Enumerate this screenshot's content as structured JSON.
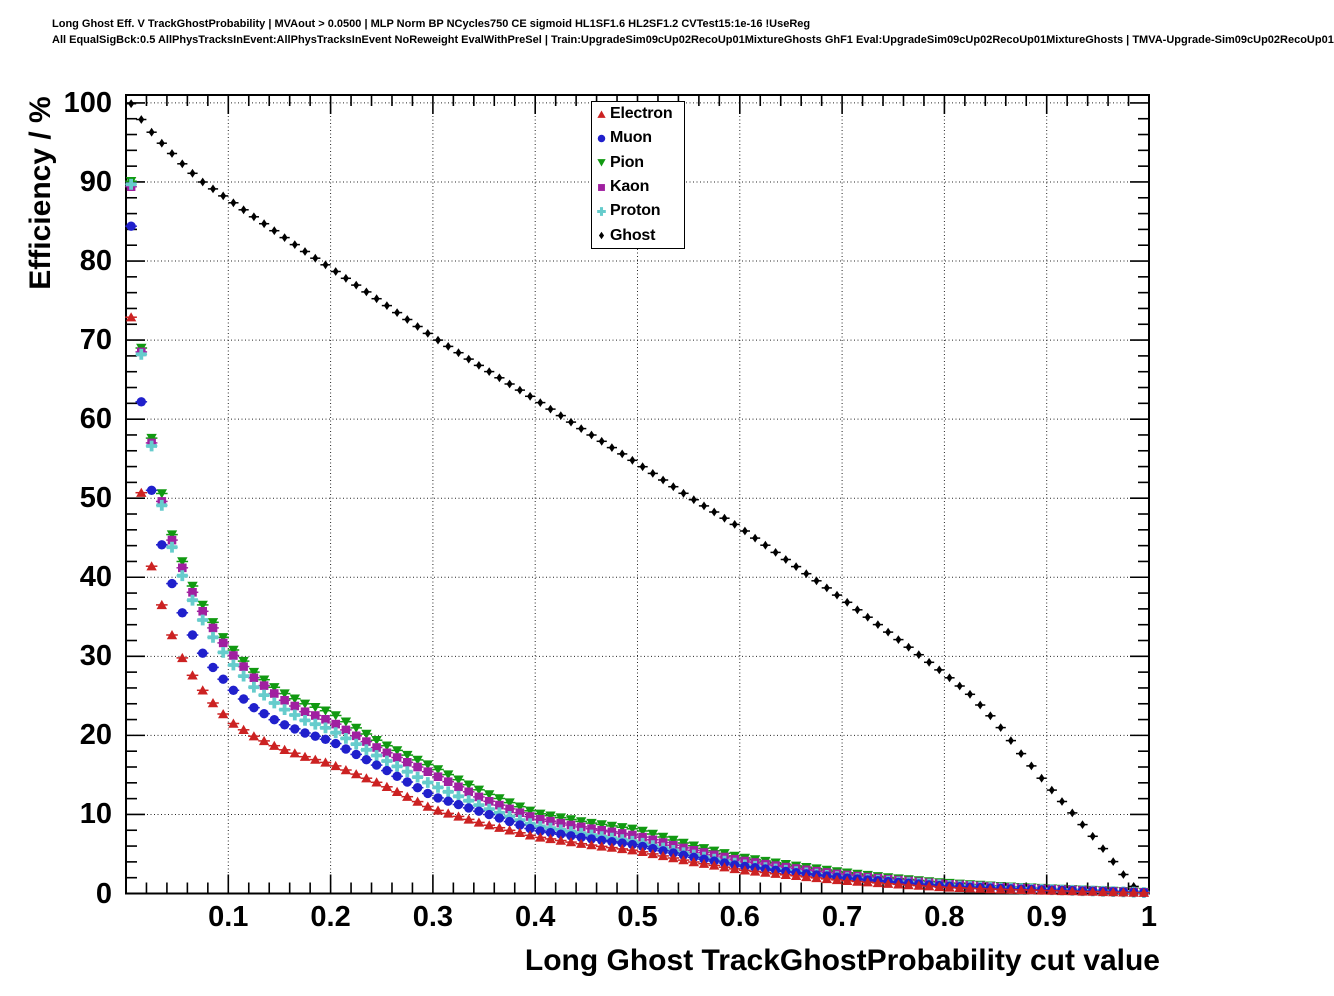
{
  "header": {
    "line1": "Long Ghost Eff. V TrackGhostProbability | MVAout > 0.0500 | MLP Norm BP NCycles750 CE sigmoid HL1SF1.6 HL2SF1.2 CVTest15:1e-16 !UseReg",
    "line2": "All EqualSigBck:0.5 AllPhysTracksInEvent:AllPhysTracksInEvent NoReweight EvalWithPreSel | Train:UpgradeSim09cUp02RecoUp01MixtureGhosts GhF1 Eval:UpgradeSim09cUp02RecoUp01MixtureGhosts | TMVA-Upgrade-Sim09cUp02RecoUp01"
  },
  "axes": {
    "x": {
      "title": "Long Ghost TrackGhostProbability cut value",
      "min": 0,
      "max": 1,
      "minor_step": 0.02,
      "ticks": [
        {
          "value": 0.1,
          "label": "0.1"
        },
        {
          "value": 0.2,
          "label": "0.2"
        },
        {
          "value": 0.3,
          "label": "0.3"
        },
        {
          "value": 0.4,
          "label": "0.4"
        },
        {
          "value": 0.5,
          "label": "0.5"
        },
        {
          "value": 0.6,
          "label": "0.6"
        },
        {
          "value": 0.7,
          "label": "0.7"
        },
        {
          "value": 0.8,
          "label": "0.8"
        },
        {
          "value": 0.9,
          "label": "0.9"
        },
        {
          "value": 1.0,
          "label": "1"
        }
      ]
    },
    "y": {
      "title": "Efficiency / %",
      "min": 0,
      "max": 101,
      "minor_step": 2,
      "ticks": [
        {
          "value": 0,
          "label": "0"
        },
        {
          "value": 10,
          "label": "10"
        },
        {
          "value": 20,
          "label": "20"
        },
        {
          "value": 30,
          "label": "30"
        },
        {
          "value": 40,
          "label": "40"
        },
        {
          "value": 50,
          "label": "50"
        },
        {
          "value": 60,
          "label": "60"
        },
        {
          "value": 70,
          "label": "70"
        },
        {
          "value": 80,
          "label": "80"
        },
        {
          "value": 90,
          "label": "90"
        },
        {
          "value": 100,
          "label": "100"
        }
      ]
    }
  },
  "legend": {
    "items": [
      {
        "label": "Electron",
        "marker": "triangle-up",
        "color": "#cc2222"
      },
      {
        "label": "Muon",
        "marker": "circle",
        "color": "#2020cc"
      },
      {
        "label": "Pion",
        "marker": "triangle-down",
        "color": "#119911"
      },
      {
        "label": "Kaon",
        "marker": "square",
        "color": "#a020a0"
      },
      {
        "label": "Proton",
        "marker": "plus",
        "color": "#66cccc"
      },
      {
        "label": "Ghost",
        "marker": "diamond",
        "color": "#000000"
      }
    ]
  },
  "chart_data": {
    "type": "scatter",
    "title": "",
    "xlabel": "Long Ghost TrackGhostProbability cut value",
    "ylabel": "Efficiency / %",
    "xlim": [
      0,
      1
    ],
    "ylim": [
      0,
      101
    ],
    "grid": true,
    "grid_style": "dotted",
    "legend_position": "top-center",
    "marker_step": 0.01,
    "note": "Markers are drawn every 0.01 in x with horizontal error bars of ±0.005; anchors are efficiency (%) values read from the plot, linearly interpolated between.",
    "series": [
      {
        "name": "Ghost",
        "marker": "diamond",
        "color": "#000000",
        "x_first": 0.005,
        "x_last": 0.985,
        "anchors": [
          [
            0.005,
            99.9
          ],
          [
            0.015,
            97.9
          ],
          [
            0.025,
            96.3
          ],
          [
            0.035,
            94.9
          ],
          [
            0.045,
            93.6
          ],
          [
            0.055,
            92.3
          ],
          [
            0.065,
            91.1
          ],
          [
            0.075,
            90.0
          ],
          [
            0.1,
            87.8
          ],
          [
            0.125,
            85.6
          ],
          [
            0.15,
            83.4
          ],
          [
            0.175,
            81.2
          ],
          [
            0.2,
            79.1
          ],
          [
            0.25,
            74.8
          ],
          [
            0.3,
            70.4
          ],
          [
            0.35,
            66.4
          ],
          [
            0.4,
            62.5
          ],
          [
            0.45,
            58.4
          ],
          [
            0.5,
            54.4
          ],
          [
            0.55,
            50.2
          ],
          [
            0.6,
            46.3
          ],
          [
            0.65,
            41.8
          ],
          [
            0.7,
            37.3
          ],
          [
            0.75,
            32.6
          ],
          [
            0.8,
            27.8
          ],
          [
            0.825,
            25.2
          ],
          [
            0.85,
            21.8
          ],
          [
            0.875,
            17.7
          ],
          [
            0.9,
            13.8
          ],
          [
            0.925,
            10.2
          ],
          [
            0.95,
            6.5
          ],
          [
            0.975,
            2.4
          ],
          [
            0.985,
            0.9
          ]
        ]
      },
      {
        "name": "Pion",
        "marker": "triangle-down",
        "color": "#119911",
        "x_first": 0.005,
        "x_last": 0.995,
        "anchors": [
          [
            0.005,
            90.1
          ],
          [
            0.015,
            69.0
          ],
          [
            0.025,
            57.6
          ],
          [
            0.035,
            50.6
          ],
          [
            0.045,
            45.4
          ],
          [
            0.055,
            42.0
          ],
          [
            0.065,
            38.9
          ],
          [
            0.075,
            36.5
          ],
          [
            0.085,
            34.3
          ],
          [
            0.095,
            32.4
          ],
          [
            0.105,
            30.8
          ],
          [
            0.125,
            28.0
          ],
          [
            0.15,
            25.6
          ],
          [
            0.175,
            24.0
          ],
          [
            0.2,
            22.9
          ],
          [
            0.25,
            19.0
          ],
          [
            0.3,
            16.0
          ],
          [
            0.35,
            12.8
          ],
          [
            0.4,
            10.2
          ],
          [
            0.45,
            9.0
          ],
          [
            0.5,
            8.1
          ],
          [
            0.55,
            6.2
          ],
          [
            0.6,
            4.6
          ],
          [
            0.65,
            3.6
          ],
          [
            0.7,
            2.7
          ],
          [
            0.75,
            1.95
          ],
          [
            0.8,
            1.35
          ],
          [
            0.85,
            0.95
          ],
          [
            0.9,
            0.65
          ],
          [
            0.95,
            0.4
          ],
          [
            0.995,
            0.18
          ]
        ]
      },
      {
        "name": "Kaon",
        "marker": "square",
        "color": "#a020a0",
        "x_first": 0.005,
        "x_last": 0.995,
        "anchors": [
          [
            0.005,
            89.4
          ],
          [
            0.015,
            68.5
          ],
          [
            0.025,
            57.0
          ],
          [
            0.035,
            49.6
          ],
          [
            0.045,
            44.7
          ],
          [
            0.055,
            41.2
          ],
          [
            0.065,
            38.1
          ],
          [
            0.075,
            35.7
          ],
          [
            0.085,
            33.6
          ],
          [
            0.095,
            31.7
          ],
          [
            0.105,
            30.1
          ],
          [
            0.125,
            27.3
          ],
          [
            0.15,
            24.8
          ],
          [
            0.175,
            23.0
          ],
          [
            0.2,
            21.8
          ],
          [
            0.25,
            18.1
          ],
          [
            0.3,
            15.1
          ],
          [
            0.35,
            11.9
          ],
          [
            0.4,
            9.5
          ],
          [
            0.45,
            8.3
          ],
          [
            0.5,
            7.3
          ],
          [
            0.55,
            5.6
          ],
          [
            0.6,
            4.2
          ],
          [
            0.65,
            3.25
          ],
          [
            0.7,
            2.4
          ],
          [
            0.75,
            1.75
          ],
          [
            0.8,
            1.2
          ],
          [
            0.85,
            0.85
          ],
          [
            0.9,
            0.58
          ],
          [
            0.95,
            0.35
          ],
          [
            0.995,
            0.15
          ]
        ]
      },
      {
        "name": "Proton",
        "marker": "plus",
        "color": "#66cccc",
        "x_first": 0.005,
        "x_last": 0.995,
        "anchors": [
          [
            0.005,
            89.7
          ],
          [
            0.015,
            68.2
          ],
          [
            0.025,
            56.6
          ],
          [
            0.035,
            49.1
          ],
          [
            0.045,
            43.8
          ],
          [
            0.055,
            40.2
          ],
          [
            0.065,
            37.1
          ],
          [
            0.075,
            34.6
          ],
          [
            0.085,
            32.4
          ],
          [
            0.095,
            30.5
          ],
          [
            0.105,
            28.9
          ],
          [
            0.125,
            26.1
          ],
          [
            0.15,
            23.6
          ],
          [
            0.175,
            21.9
          ],
          [
            0.2,
            20.7
          ],
          [
            0.25,
            17.1
          ],
          [
            0.3,
            13.7
          ],
          [
            0.35,
            10.9
          ],
          [
            0.4,
            8.6
          ],
          [
            0.45,
            7.5
          ],
          [
            0.5,
            6.5
          ],
          [
            0.55,
            5.0
          ],
          [
            0.6,
            3.7
          ],
          [
            0.65,
            2.85
          ],
          [
            0.7,
            2.05
          ],
          [
            0.75,
            1.5
          ],
          [
            0.8,
            1.05
          ],
          [
            0.85,
            0.72
          ],
          [
            0.9,
            0.5
          ],
          [
            0.95,
            0.3
          ],
          [
            0.995,
            0.13
          ]
        ]
      },
      {
        "name": "Muon",
        "marker": "circle",
        "color": "#2020cc",
        "x_first": 0.005,
        "x_last": 0.995,
        "anchors": [
          [
            0.005,
            84.4
          ],
          [
            0.015,
            62.2
          ],
          [
            0.025,
            51.0
          ],
          [
            0.035,
            44.1
          ],
          [
            0.045,
            39.2
          ],
          [
            0.055,
            35.5
          ],
          [
            0.065,
            32.7
          ],
          [
            0.075,
            30.4
          ],
          [
            0.085,
            28.6
          ],
          [
            0.095,
            27.1
          ],
          [
            0.105,
            25.7
          ],
          [
            0.125,
            23.5
          ],
          [
            0.15,
            21.6
          ],
          [
            0.175,
            20.3
          ],
          [
            0.2,
            19.3
          ],
          [
            0.25,
            15.9
          ],
          [
            0.3,
            12.3
          ],
          [
            0.35,
            10.2
          ],
          [
            0.4,
            8.0
          ],
          [
            0.45,
            7.0
          ],
          [
            0.5,
            6.1
          ],
          [
            0.55,
            4.7
          ],
          [
            0.6,
            3.5
          ],
          [
            0.65,
            2.7
          ],
          [
            0.7,
            2.0
          ],
          [
            0.75,
            1.45
          ],
          [
            0.8,
            0.95
          ],
          [
            0.85,
            0.65
          ],
          [
            0.9,
            0.45
          ],
          [
            0.95,
            0.28
          ],
          [
            0.995,
            0.12
          ]
        ]
      },
      {
        "name": "Electron",
        "marker": "triangle-up",
        "color": "#cc2222",
        "x_first": 0.005,
        "x_last": 0.995,
        "anchors": [
          [
            0.005,
            72.9
          ],
          [
            0.015,
            50.7
          ],
          [
            0.025,
            41.4
          ],
          [
            0.035,
            36.5
          ],
          [
            0.045,
            32.7
          ],
          [
            0.055,
            29.8
          ],
          [
            0.065,
            27.6
          ],
          [
            0.075,
            25.7
          ],
          [
            0.085,
            24.1
          ],
          [
            0.095,
            22.7
          ],
          [
            0.105,
            21.5
          ],
          [
            0.125,
            19.9
          ],
          [
            0.15,
            18.4
          ],
          [
            0.175,
            17.3
          ],
          [
            0.2,
            16.4
          ],
          [
            0.25,
            13.8
          ],
          [
            0.3,
            10.7
          ],
          [
            0.35,
            8.8
          ],
          [
            0.4,
            7.2
          ],
          [
            0.45,
            6.2
          ],
          [
            0.5,
            5.4
          ],
          [
            0.55,
            4.1
          ],
          [
            0.6,
            3.0
          ],
          [
            0.65,
            2.3
          ],
          [
            0.7,
            1.65
          ],
          [
            0.75,
            1.2
          ],
          [
            0.8,
            0.8
          ],
          [
            0.85,
            0.55
          ],
          [
            0.9,
            0.38
          ],
          [
            0.95,
            0.22
          ],
          [
            0.995,
            0.1
          ]
        ]
      }
    ]
  }
}
